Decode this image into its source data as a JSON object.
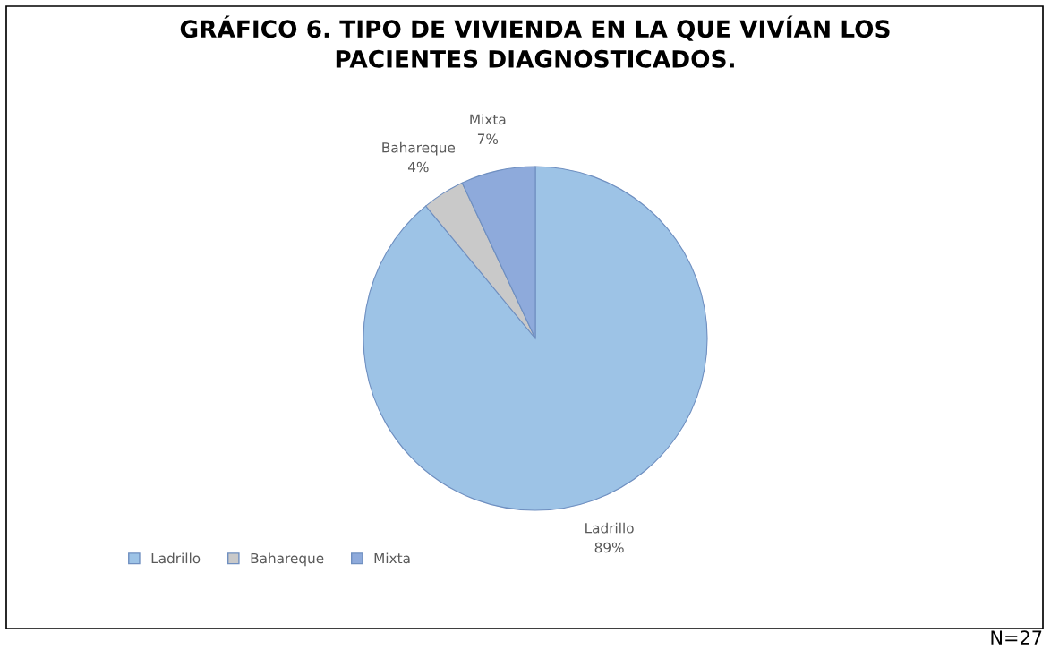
{
  "chart_data": {
    "type": "pie",
    "title": "GRÁFICO 6. TIPO DE VIVIENDA EN LA QUE VIVÍAN LOS\nPACIENTES DIAGNOSTICADOS.",
    "categories": [
      "Ladrillo",
      "Bahareque",
      "Mixta"
    ],
    "values": [
      89,
      4,
      7
    ],
    "colors": [
      "#9dc3e6",
      "#c9c9c9",
      "#8eaadb"
    ],
    "value_labels": [
      "89%",
      "4%",
      "7%"
    ],
    "legend": "bottom left",
    "annotations": [
      "N=27"
    ]
  }
}
